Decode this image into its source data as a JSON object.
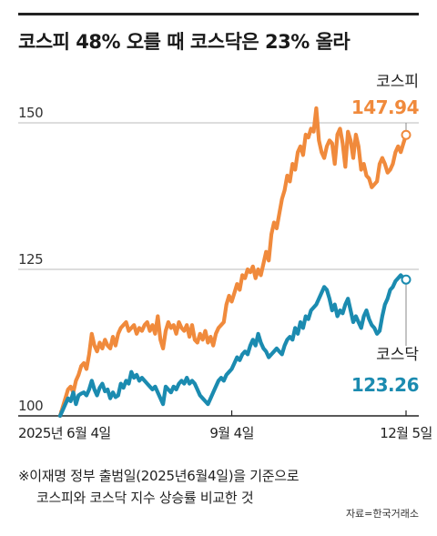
{
  "title": "코스피 48% 오를 때 코스닥은 23% 올라",
  "chart_data": {
    "type": "line",
    "title": "코스피 48% 오를 때 코스닥은 23% 올라",
    "y_ticks": [
      100,
      125,
      150
    ],
    "ylim": [
      100,
      153
    ],
    "x_labels": [
      "2025년 6월 4일",
      "9월 4일",
      "12월 5일"
    ],
    "x_label_positions": [
      0,
      65,
      131
    ],
    "grid": true,
    "series": [
      {
        "name": "코스피",
        "color": "#f08a3c",
        "end_label": "147.94",
        "values": [
          100,
          101.5,
          103,
          104.5,
          105,
          104,
          106,
          107,
          108.5,
          109,
          108,
          110.5,
          114,
          112,
          111,
          112.5,
          111.5,
          113,
          112,
          111.5,
          113.5,
          112,
          114,
          115,
          115.5,
          116,
          114.5,
          115,
          115.5,
          114,
          115,
          114.5,
          115.5,
          116,
          114.5,
          115.5,
          114,
          117,
          113,
          111.5,
          114.5,
          116,
          115,
          115.5,
          114,
          116,
          115,
          114.5,
          115.5,
          113.5,
          115.5,
          113,
          112.5,
          114,
          113,
          114.5,
          112.5,
          113.5,
          112,
          114,
          115,
          115.5,
          116,
          119,
          120.5,
          119.5,
          121,
          122.5,
          121.5,
          124,
          123.5,
          125,
          124.5,
          125.5,
          123.5,
          125,
          124,
          126,
          128,
          126.5,
          131,
          133,
          132,
          134.5,
          137,
          138.5,
          141,
          140,
          143,
          142,
          145,
          146,
          144.5,
          148,
          147.5,
          149,
          148.5,
          152.5,
          147,
          145,
          144,
          146,
          147,
          146.5,
          143,
          148,
          149,
          146.5,
          142.5,
          148.5,
          147,
          144,
          148,
          146,
          142,
          143,
          141,
          140.5,
          139,
          139.5,
          140,
          143,
          144,
          143,
          141.5,
          142,
          143,
          145,
          146,
          145,
          146.5,
          147.94
        ]
      },
      {
        "name": "코스닥",
        "color": "#1b8bb0",
        "end_label": "123.26",
        "values": [
          100,
          101,
          102,
          103,
          102.5,
          104,
          102,
          103.5,
          103.8,
          104,
          103.5,
          104.5,
          106,
          104.5,
          103.5,
          104.8,
          105.5,
          104.2,
          104.5,
          103,
          104,
          103.2,
          103.5,
          105.5,
          104.8,
          106,
          105.5,
          107.5,
          106.5,
          107,
          106,
          106.5,
          106,
          105.5,
          105,
          104.5,
          105,
          104,
          103,
          102,
          105,
          104.5,
          104,
          105,
          104.5,
          105.5,
          106,
          105.5,
          106.5,
          105.5,
          106,
          105.5,
          104.5,
          103.5,
          103,
          102.5,
          102,
          103,
          104,
          105,
          106,
          106.5,
          106,
          107,
          107.5,
          108,
          109,
          110,
          109.5,
          110.5,
          111,
          110.5,
          112,
          113,
          112,
          114,
          112.5,
          111.5,
          111,
          110,
          110.5,
          111,
          111.5,
          111,
          110.5,
          112,
          113,
          113.5,
          113,
          115,
          114,
          116,
          115,
          117,
          116.5,
          118,
          118.5,
          119,
          120,
          121,
          122,
          121.5,
          120,
          118,
          119,
          117,
          118,
          117.5,
          119,
          120,
          118,
          116,
          117,
          116,
          115,
          117,
          118,
          116.5,
          115.5,
          115,
          114,
          114.5,
          117,
          119,
          120,
          121.5,
          122,
          123,
          123.5,
          124,
          123.5,
          123.26
        ]
      }
    ]
  },
  "notes": {
    "line1": "※이재명 정부 출범일(2025년6월4일)을 기준으로",
    "line2": "코스피와 코스닥 지수 상승률 비교한 것"
  },
  "source": "자료=한국거래소"
}
